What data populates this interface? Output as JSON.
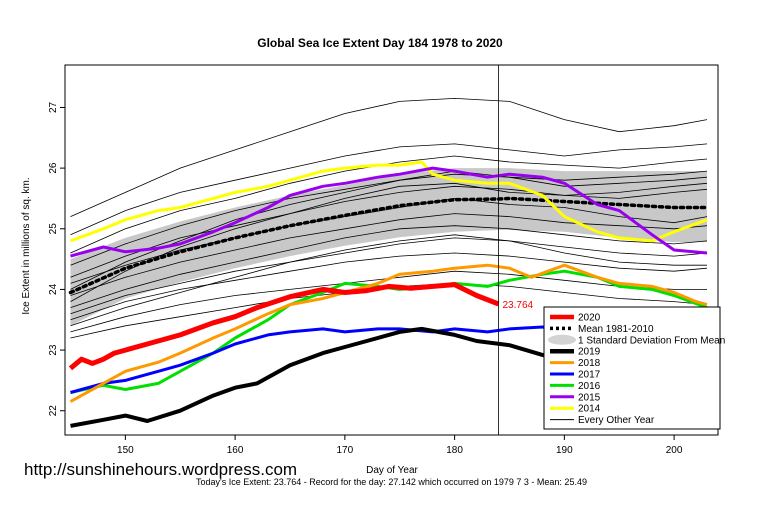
{
  "page": {
    "site": "http://sunshinehours.wordpress.com",
    "footer": "Today's Ice Extent: 23.764  - Record for the day: 27.142 which occurred on 1979 7 3  - Mean: 25.49"
  },
  "chart_data": {
    "type": "line",
    "title": "Global Sea Ice Extent Day 184 1978 to 2020",
    "xlabel": "Day of Year",
    "ylabel": "Ice Extent in millions of sq. km.",
    "xlim": [
      144.5,
      204
    ],
    "ylim": [
      21.6,
      27.7
    ],
    "xticks": [
      150,
      160,
      170,
      180,
      190,
      200
    ],
    "yticks": [
      22,
      23,
      24,
      25,
      26,
      27
    ],
    "current_day": 184,
    "end_label": "23.764",
    "grid": false,
    "legend_position": "bottom-right",
    "legend": [
      {
        "label": "2020",
        "color": "#ff0000",
        "style": "thick"
      },
      {
        "label": "Mean 1981-2010",
        "color": "#000000",
        "style": "dotted"
      },
      {
        "label": "1 Standard Deviation From Mean",
        "color": "#d3d3d3",
        "style": "band"
      },
      {
        "label": "2019",
        "color": "#000000",
        "style": "thick"
      },
      {
        "label": "2018",
        "color": "#ff9900",
        "style": "medium"
      },
      {
        "label": "2017",
        "color": "#0000ff",
        "style": "medium"
      },
      {
        "label": "2016",
        "color": "#00e000",
        "style": "medium"
      },
      {
        "label": "2015",
        "color": "#9900ee",
        "style": "medium"
      },
      {
        "label": "2014",
        "color": "#ffff00",
        "style": "medium"
      },
      {
        "label": "Every Other Year",
        "color": "#000000",
        "style": "thin"
      }
    ],
    "x": [
      145,
      150,
      155,
      160,
      165,
      170,
      175,
      180,
      184,
      185,
      190,
      195,
      200,
      203
    ],
    "mean": [
      23.95,
      24.35,
      24.62,
      24.85,
      25.05,
      25.22,
      25.38,
      25.48,
      25.49,
      25.5,
      25.45,
      25.4,
      25.35,
      25.35
    ],
    "sd_upper": [
      24.5,
      24.85,
      25.12,
      25.35,
      25.55,
      25.72,
      25.9,
      26.0,
      26.0,
      26.0,
      25.95,
      25.95,
      25.95,
      25.95
    ],
    "sd_lower": [
      23.4,
      23.85,
      24.12,
      24.35,
      24.55,
      24.72,
      24.86,
      24.95,
      24.98,
      24.98,
      24.95,
      24.85,
      24.78,
      24.78
    ],
    "series": [
      {
        "name": "2020",
        "color": "#ff0000",
        "width": 5,
        "x": [
          145,
          146,
          147,
          148,
          149,
          150,
          152,
          155,
          158,
          160,
          162,
          165,
          168,
          170,
          172,
          174,
          176,
          178,
          180,
          182,
          184
        ],
        "values": [
          22.7,
          22.85,
          22.78,
          22.85,
          22.95,
          23.0,
          23.1,
          23.25,
          23.45,
          23.55,
          23.7,
          23.88,
          24.0,
          23.95,
          23.98,
          24.05,
          24.02,
          24.05,
          24.08,
          23.9,
          23.76
        ]
      },
      {
        "name": "2019",
        "color": "#000000",
        "width": 4,
        "x": [
          145,
          148,
          150,
          152,
          155,
          158,
          160,
          162,
          165,
          168,
          170,
          172,
          175,
          177,
          180,
          182,
          185,
          188,
          190,
          193,
          195,
          198,
          200,
          202,
          203
        ],
        "values": [
          21.75,
          21.85,
          21.92,
          21.83,
          22.0,
          22.25,
          22.38,
          22.45,
          22.75,
          22.95,
          23.05,
          23.15,
          23.3,
          23.35,
          23.25,
          23.15,
          23.08,
          22.92,
          22.8,
          22.78,
          22.85,
          22.9,
          22.75,
          22.7,
          22.78
        ]
      },
      {
        "name": "2018",
        "color": "#ff9900",
        "width": 3,
        "x": [
          145,
          148,
          150,
          153,
          155,
          158,
          160,
          163,
          165,
          168,
          170,
          173,
          175,
          178,
          180,
          183,
          185,
          187,
          190,
          193,
          195,
          198,
          200,
          202,
          203
        ],
        "values": [
          22.15,
          22.45,
          22.65,
          22.8,
          22.95,
          23.2,
          23.35,
          23.6,
          23.75,
          23.85,
          23.95,
          24.1,
          24.25,
          24.3,
          24.35,
          24.4,
          24.35,
          24.2,
          24.4,
          24.2,
          24.1,
          24.05,
          23.95,
          23.8,
          23.75
        ]
      },
      {
        "name": "2017",
        "color": "#0000ff",
        "width": 3,
        "x": [
          145,
          148,
          150,
          153,
          155,
          158,
          160,
          163,
          165,
          168,
          170,
          173,
          175,
          178,
          180,
          183,
          185,
          188,
          190,
          193,
          195,
          198,
          200,
          203
        ],
        "values": [
          22.3,
          22.45,
          22.5,
          22.65,
          22.75,
          22.95,
          23.1,
          23.25,
          23.3,
          23.35,
          23.3,
          23.35,
          23.35,
          23.3,
          23.35,
          23.3,
          23.35,
          23.38,
          23.35,
          23.2,
          23.1,
          22.95,
          23.05,
          23.25
        ]
      },
      {
        "name": "2016",
        "color": "#00e000",
        "width": 3,
        "x": [
          145,
          148,
          150,
          153,
          155,
          158,
          160,
          163,
          165,
          168,
          170,
          173,
          175,
          178,
          180,
          183,
          185,
          188,
          190,
          193,
          195,
          198,
          200,
          203
        ],
        "values": [
          22.3,
          22.42,
          22.35,
          22.45,
          22.65,
          22.95,
          23.2,
          23.5,
          23.75,
          23.95,
          24.1,
          24.05,
          24.0,
          24.05,
          24.1,
          24.05,
          24.15,
          24.25,
          24.3,
          24.2,
          24.05,
          24.0,
          23.9,
          23.7
        ]
      },
      {
        "name": "2015",
        "color": "#9900ee",
        "width": 3,
        "x": [
          145,
          148,
          150,
          153,
          155,
          158,
          160,
          163,
          165,
          168,
          170,
          173,
          175,
          178,
          180,
          183,
          185,
          188,
          190,
          193,
          195,
          198,
          200,
          203
        ],
        "values": [
          24.55,
          24.7,
          24.62,
          24.68,
          24.75,
          24.95,
          25.1,
          25.35,
          25.55,
          25.7,
          25.75,
          25.85,
          25.9,
          26.0,
          25.95,
          25.85,
          25.9,
          25.85,
          25.75,
          25.4,
          25.3,
          24.9,
          24.65,
          24.6
        ]
      },
      {
        "name": "2014",
        "color": "#ffff00",
        "width": 3,
        "x": [
          145,
          148,
          150,
          153,
          155,
          158,
          160,
          163,
          165,
          168,
          170,
          173,
          175,
          177,
          178,
          180,
          183,
          185,
          188,
          190,
          193,
          195,
          198,
          200,
          203
        ],
        "values": [
          24.8,
          25.0,
          25.15,
          25.3,
          25.35,
          25.5,
          25.6,
          25.7,
          25.8,
          25.95,
          26.0,
          26.05,
          26.05,
          26.1,
          25.9,
          25.8,
          25.75,
          25.75,
          25.55,
          25.2,
          24.95,
          24.85,
          24.8,
          24.95,
          25.15
        ]
      }
    ],
    "background_years": [
      {
        "x": [
          145,
          150,
          155,
          160,
          165,
          170,
          175,
          180,
          185,
          190,
          195,
          200,
          203
        ],
        "values": [
          25.2,
          25.6,
          26.0,
          26.3,
          26.6,
          26.9,
          27.1,
          27.15,
          27.1,
          26.8,
          26.6,
          26.7,
          26.8
        ]
      },
      {
        "x": [
          145,
          150,
          155,
          160,
          165,
          170,
          175,
          180,
          185,
          190,
          195,
          200,
          203
        ],
        "values": [
          24.9,
          25.3,
          25.6,
          25.8,
          26.0,
          26.2,
          26.35,
          26.4,
          26.3,
          26.2,
          26.3,
          26.35,
          26.4
        ]
      },
      {
        "x": [
          145,
          150,
          155,
          160,
          165,
          170,
          175,
          180,
          185,
          190,
          195,
          200,
          203
        ],
        "values": [
          24.6,
          25.0,
          25.3,
          25.5,
          25.75,
          25.95,
          26.1,
          26.2,
          26.1,
          26.05,
          26.0,
          26.1,
          26.15
        ]
      },
      {
        "x": [
          145,
          150,
          155,
          160,
          165,
          170,
          175,
          180,
          185,
          190,
          195,
          200,
          203
        ],
        "values": [
          24.4,
          24.75,
          25.05,
          25.3,
          25.5,
          25.65,
          25.8,
          25.9,
          25.85,
          25.7,
          25.75,
          25.8,
          25.85
        ]
      },
      {
        "x": [
          145,
          150,
          155,
          160,
          165,
          170,
          175,
          180,
          185,
          190,
          195,
          200,
          203
        ],
        "values": [
          24.2,
          24.55,
          24.85,
          25.05,
          25.25,
          25.45,
          25.6,
          25.7,
          25.65,
          25.55,
          25.5,
          25.6,
          25.65
        ]
      },
      {
        "x": [
          145,
          150,
          155,
          160,
          165,
          170,
          175,
          180,
          185,
          190,
          195,
          200,
          203
        ],
        "values": [
          24.1,
          24.4,
          24.65,
          24.85,
          25.05,
          25.2,
          25.35,
          25.5,
          25.4,
          25.35,
          25.2,
          25.1,
          25.2
        ]
      },
      {
        "x": [
          145,
          150,
          155,
          160,
          165,
          170,
          175,
          180,
          185,
          190,
          195,
          200,
          203
        ],
        "values": [
          23.9,
          24.2,
          24.45,
          24.65,
          24.85,
          25.0,
          25.15,
          25.25,
          25.2,
          25.1,
          25.05,
          25.0,
          25.05
        ]
      },
      {
        "x": [
          145,
          150,
          155,
          160,
          165,
          170,
          175,
          180,
          185,
          190,
          195,
          200,
          203
        ],
        "values": [
          23.7,
          24.0,
          24.25,
          24.45,
          24.65,
          24.85,
          25.0,
          25.05,
          25.0,
          24.9,
          24.8,
          24.75,
          24.8
        ]
      },
      {
        "x": [
          145,
          150,
          155,
          160,
          165,
          170,
          175,
          180,
          185,
          190,
          195,
          200,
          203
        ],
        "values": [
          23.6,
          23.9,
          24.1,
          24.3,
          24.45,
          24.6,
          24.75,
          24.85,
          24.8,
          24.7,
          24.6,
          24.55,
          24.6
        ]
      },
      {
        "x": [
          145,
          150,
          155,
          160,
          165,
          170,
          175,
          180,
          185,
          190,
          195,
          200,
          203
        ],
        "values": [
          23.5,
          23.8,
          24.0,
          24.15,
          24.3,
          24.45,
          24.55,
          24.6,
          24.55,
          24.45,
          24.35,
          24.3,
          24.35
        ]
      },
      {
        "x": [
          145,
          150,
          155,
          160,
          165,
          170,
          175,
          180,
          185,
          190,
          195,
          200,
          203
        ],
        "values": [
          23.3,
          23.55,
          23.75,
          23.9,
          24.0,
          24.1,
          24.2,
          24.3,
          24.25,
          24.15,
          24.05,
          24.0,
          24.0
        ]
      },
      {
        "x": [
          145,
          150,
          155,
          160,
          165,
          170,
          175,
          180,
          185,
          190,
          195,
          200,
          203
        ],
        "values": [
          23.2,
          23.4,
          23.55,
          23.7,
          23.85,
          23.95,
          24.05,
          24.1,
          24.05,
          23.95,
          23.85,
          23.8,
          23.75
        ]
      },
      {
        "x": [
          145,
          150,
          155,
          160,
          165,
          170,
          175,
          180,
          185,
          190,
          195,
          200,
          203
        ],
        "values": [
          23.8,
          24.3,
          24.7,
          25.0,
          25.25,
          25.5,
          25.7,
          25.75,
          25.6,
          25.55,
          25.6,
          25.7,
          25.75
        ]
      },
      {
        "x": [
          145,
          150,
          155,
          160,
          165,
          170,
          175,
          180,
          185,
          190,
          195,
          200,
          203
        ],
        "values": [
          24.0,
          24.45,
          24.8,
          25.15,
          25.4,
          25.6,
          25.8,
          25.95,
          25.85,
          25.8,
          25.85,
          25.9,
          25.95
        ]
      },
      {
        "x": [
          145,
          150,
          155,
          160,
          165,
          170,
          175,
          180,
          185,
          190,
          195,
          200,
          203
        ],
        "values": [
          23.4,
          23.7,
          23.95,
          24.2,
          24.45,
          24.65,
          24.8,
          24.9,
          24.8,
          24.6,
          24.45,
          24.4,
          24.4
        ]
      }
    ]
  }
}
